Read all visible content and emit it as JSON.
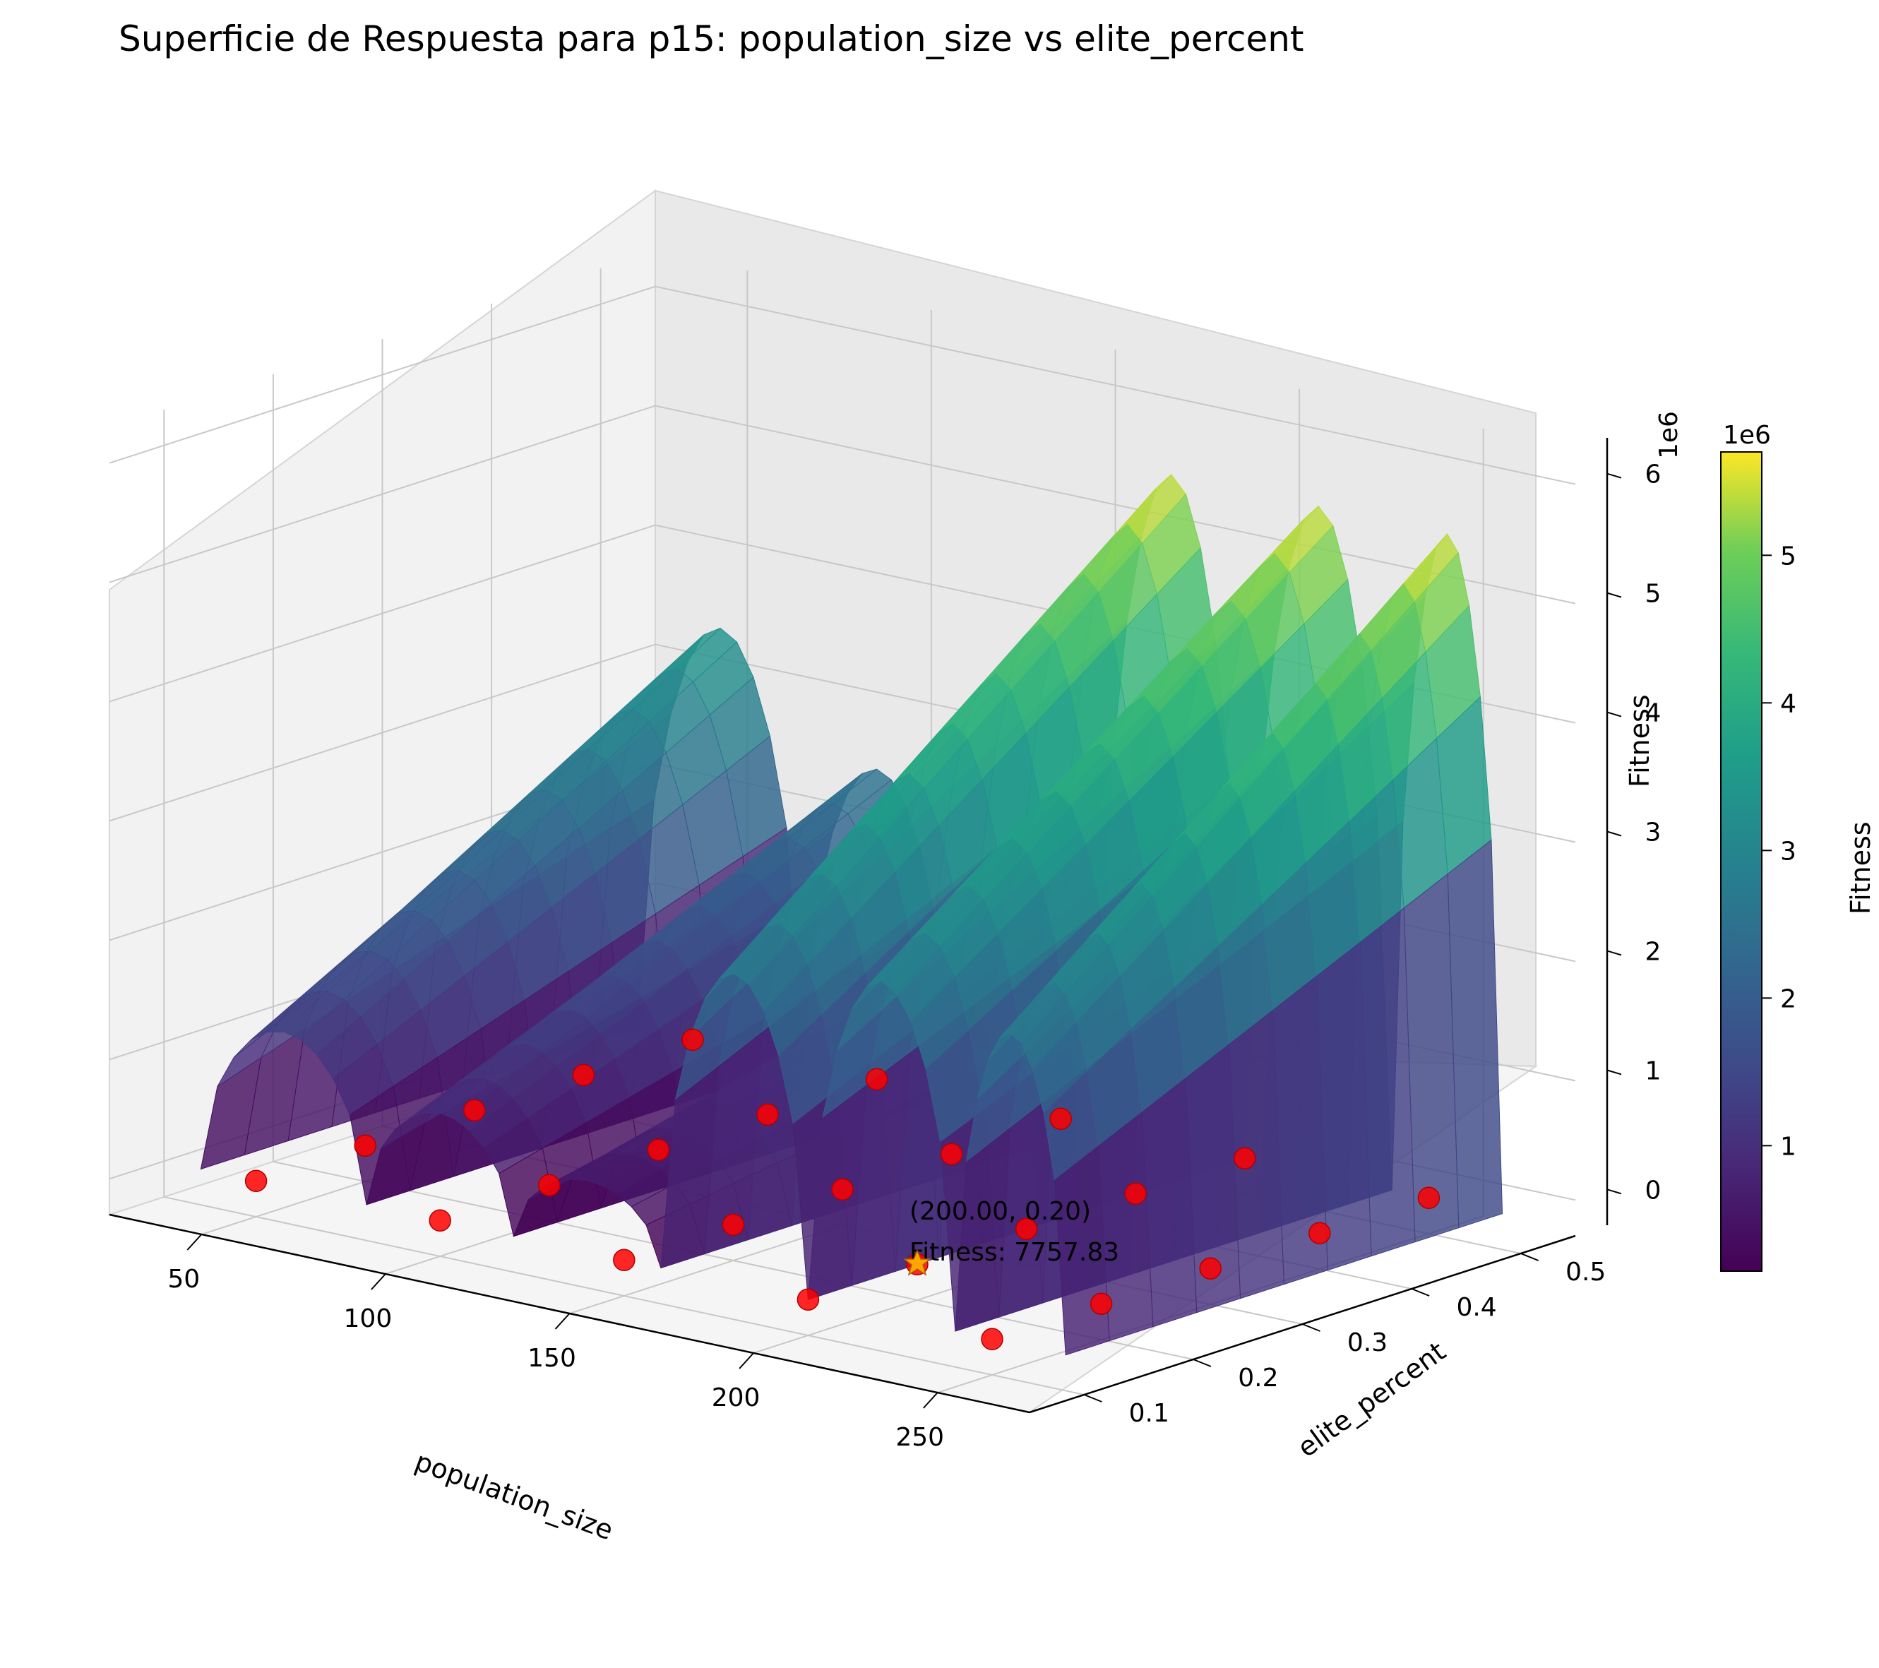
{
  "chart_data": {
    "type": "surface3d",
    "title": "Superficie de Respuesta para p15: population_size vs elite_percent",
    "xlabel": "population_size",
    "ylabel": "elite_percent",
    "zlabel": "Fitness",
    "z_offset_label": "1e6",
    "x_ticks": [
      "50",
      "100",
      "150",
      "200",
      "250"
    ],
    "y_ticks": [
      "0.1",
      "0.2",
      "0.3",
      "0.4",
      "0.5"
    ],
    "z_ticks": [
      "0",
      "1",
      "2",
      "3",
      "4",
      "5",
      "6"
    ],
    "xlim": [
      25,
      275
    ],
    "ylim": [
      0.05,
      0.55
    ],
    "zlim": [
      -0.3,
      6.3
    ],
    "colormap": "viridis",
    "grid": true,
    "surface_profile": {
      "x_breaks": [
        35,
        80,
        80,
        120,
        120,
        160,
        160,
        200,
        200,
        240,
        240,
        270
      ],
      "peak_z_at_min_y": [
        1.3,
        0.9,
        0.6,
        2.6,
        2.8,
        2.6
      ],
      "peak_z_at_max_y": [
        3.5,
        2.6,
        1.6,
        5.6,
        5.6,
        5.6
      ]
    },
    "sample_points": {
      "name": "samples",
      "color": "#ff0000",
      "x": [
        50,
        100,
        150,
        200,
        250,
        50,
        100,
        150,
        200,
        250,
        50,
        100,
        150,
        200,
        250,
        50,
        100,
        150,
        200,
        250,
        50,
        100,
        150,
        200,
        250
      ],
      "y": [
        0.1,
        0.1,
        0.1,
        0.1,
        0.1,
        0.2,
        0.2,
        0.2,
        0.2,
        0.2,
        0.3,
        0.3,
        0.3,
        0.3,
        0.3,
        0.4,
        0.4,
        0.4,
        0.4,
        0.4,
        0.5,
        0.5,
        0.5,
        0.5,
        0.5
      ],
      "z": [
        0,
        0,
        0,
        0,
        0,
        0,
        0,
        0,
        0,
        0,
        0,
        0,
        0,
        0,
        0,
        0,
        0,
        0,
        0,
        0,
        0,
        0,
        0,
        0,
        0
      ]
    },
    "best_point": {
      "x": 200,
      "y": 0.2,
      "z": 7757.83,
      "label_line1": "(200.00, 0.20)",
      "label_line2": "Fitness: 7757.83",
      "color": "#ffa500"
    },
    "colorbar": {
      "label": "Fitness",
      "offset_label": "1e6",
      "ticks": [
        "1",
        "2",
        "3",
        "4",
        "5"
      ],
      "range": [
        0.15,
        5.7
      ],
      "tick_values": [
        1,
        2,
        3,
        4,
        5
      ]
    }
  }
}
